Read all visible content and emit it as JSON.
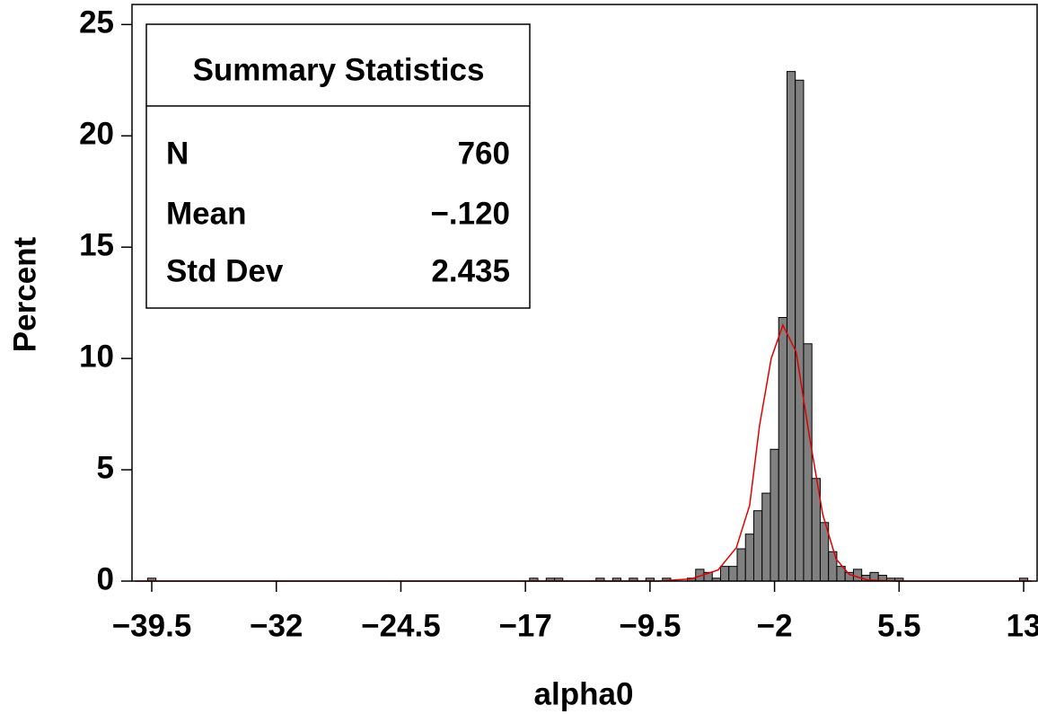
{
  "chart_data": {
    "type": "histogram",
    "x_label": "alpha0",
    "y_label": "Percent",
    "bins": [
      -39.75,
      -39.25,
      -38.75,
      -38.25,
      -37.75,
      -37.25,
      -36.75,
      -36.25,
      -35.75,
      -35.25,
      -34.75,
      -34.25,
      -33.75,
      -33.25,
      -32.75,
      -32.25,
      -31.75,
      -31.25,
      -30.75,
      -30.25,
      -29.75,
      -29.25,
      -28.75,
      -28.25,
      -27.75,
      -27.25,
      -26.75,
      -26.25,
      -25.75,
      -25.25,
      -24.75,
      -24.25,
      -23.75,
      -23.25,
      -22.75,
      -22.25,
      -21.75,
      -21.25,
      -20.75,
      -20.25,
      -19.75,
      -19.25,
      -18.75,
      -18.25,
      -17.75,
      -17.25,
      -16.75,
      -16.25,
      -15.75,
      -15.25,
      -14.75,
      -14.25,
      -13.75,
      -13.25,
      -12.75,
      -12.25,
      -11.75,
      -11.25,
      -10.75,
      -10.25,
      -9.75,
      -9.25,
      -8.75,
      -8.25,
      -7.75,
      -7.25,
      -6.75,
      -6.25,
      -5.75,
      -5.25,
      -4.75,
      -4.25,
      -3.75,
      -3.25,
      -2.75,
      -2.25,
      -1.75,
      -1.25,
      -0.75,
      -0.25,
      0.25,
      0.75,
      1.25,
      1.75,
      2.25,
      2.75,
      3.25,
      3.75,
      4.25,
      4.75,
      5.25,
      5.75,
      6.25,
      6.75,
      7.25,
      7.75,
      8.25,
      8.75,
      9.25,
      9.75,
      10.25,
      10.75,
      11.25,
      11.75,
      12.25,
      12.75,
      13.25
    ],
    "values": [
      0.13,
      0,
      0,
      0,
      0,
      0,
      0,
      0,
      0,
      0,
      0,
      0,
      0,
      0,
      0,
      0,
      0,
      0,
      0,
      0,
      0,
      0,
      0,
      0,
      0,
      0,
      0,
      0,
      0,
      0,
      0,
      0,
      0,
      0,
      0,
      0,
      0,
      0,
      0,
      0,
      0,
      0,
      0,
      0,
      0,
      0,
      0.13,
      0,
      0.13,
      0.13,
      0,
      0,
      0,
      0,
      0.13,
      0,
      0.13,
      0,
      0.13,
      0,
      0.13,
      0,
      0.13,
      0,
      0,
      0.13,
      0.53,
      0.39,
      0.13,
      0.66,
      0.66,
      1.45,
      2.11,
      3.16,
      3.95,
      5.92,
      11.84,
      22.89,
      22.5,
      10.66,
      4.61,
      2.63,
      1.32,
      0.66,
      0.39,
      0.53,
      0.26,
      0.39,
      0.26,
      0.13,
      0.13,
      0,
      0,
      0,
      0,
      0,
      0,
      0,
      0,
      0,
      0,
      0,
      0,
      0,
      0,
      0.13
    ],
    "color": "#808080",
    "curve": {
      "color": "#e00000",
      "x": [
        -40.5,
        -9,
        -7,
        -5.4,
        -4.3,
        -3.5,
        -2.9,
        -2.2,
        -1.5,
        -0.7,
        0.1,
        0.9,
        1.7,
        2.5,
        3.6,
        5.4,
        7,
        13.5
      ],
      "y": [
        0,
        0,
        0.1,
        0.5,
        1.5,
        3.4,
        7,
        10,
        11.5,
        10.3,
        6.5,
        3,
        1,
        0.3,
        0.05,
        0,
        0,
        0
      ]
    },
    "xlim": [
      -40.69,
      13.81
    ],
    "xticks": [
      {
        "value": -39.5,
        "label": "−39.5"
      },
      {
        "value": -32,
        "label": "−32"
      },
      {
        "value": -24.5,
        "label": "−24.5"
      },
      {
        "value": -17,
        "label": "−17"
      },
      {
        "value": -9.5,
        "label": "−9.5"
      },
      {
        "value": -2,
        "label": "−2"
      },
      5.5,
      13
    ],
    "ylim": [
      0,
      25.9
    ],
    "yticks": [
      0,
      5,
      10,
      15,
      20,
      25
    ],
    "inset": {
      "title": "Summary Statistics",
      "rows": [
        [
          "N",
          "760"
        ],
        [
          "Mean",
          "−.120"
        ],
        [
          "Std Dev",
          "2.435"
        ]
      ]
    }
  }
}
